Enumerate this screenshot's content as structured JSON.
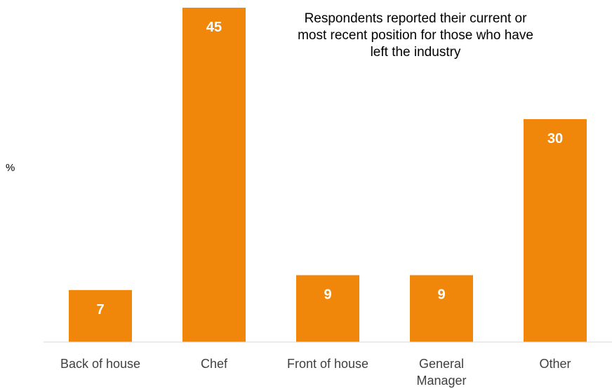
{
  "chart_data": {
    "type": "bar",
    "categories": [
      "Back of house",
      "Chef",
      "Front of house",
      "General Manager",
      "Other"
    ],
    "values": [
      7,
      45,
      9,
      9,
      30
    ],
    "ylabel": "%",
    "annotation": "Respondents reported their current or most recent position for those who have left the industry",
    "bar_color": "#F0870A",
    "value_label_color": "#ffffff",
    "axis_color": "#d9d9d9",
    "grid": false,
    "legend": "none"
  }
}
